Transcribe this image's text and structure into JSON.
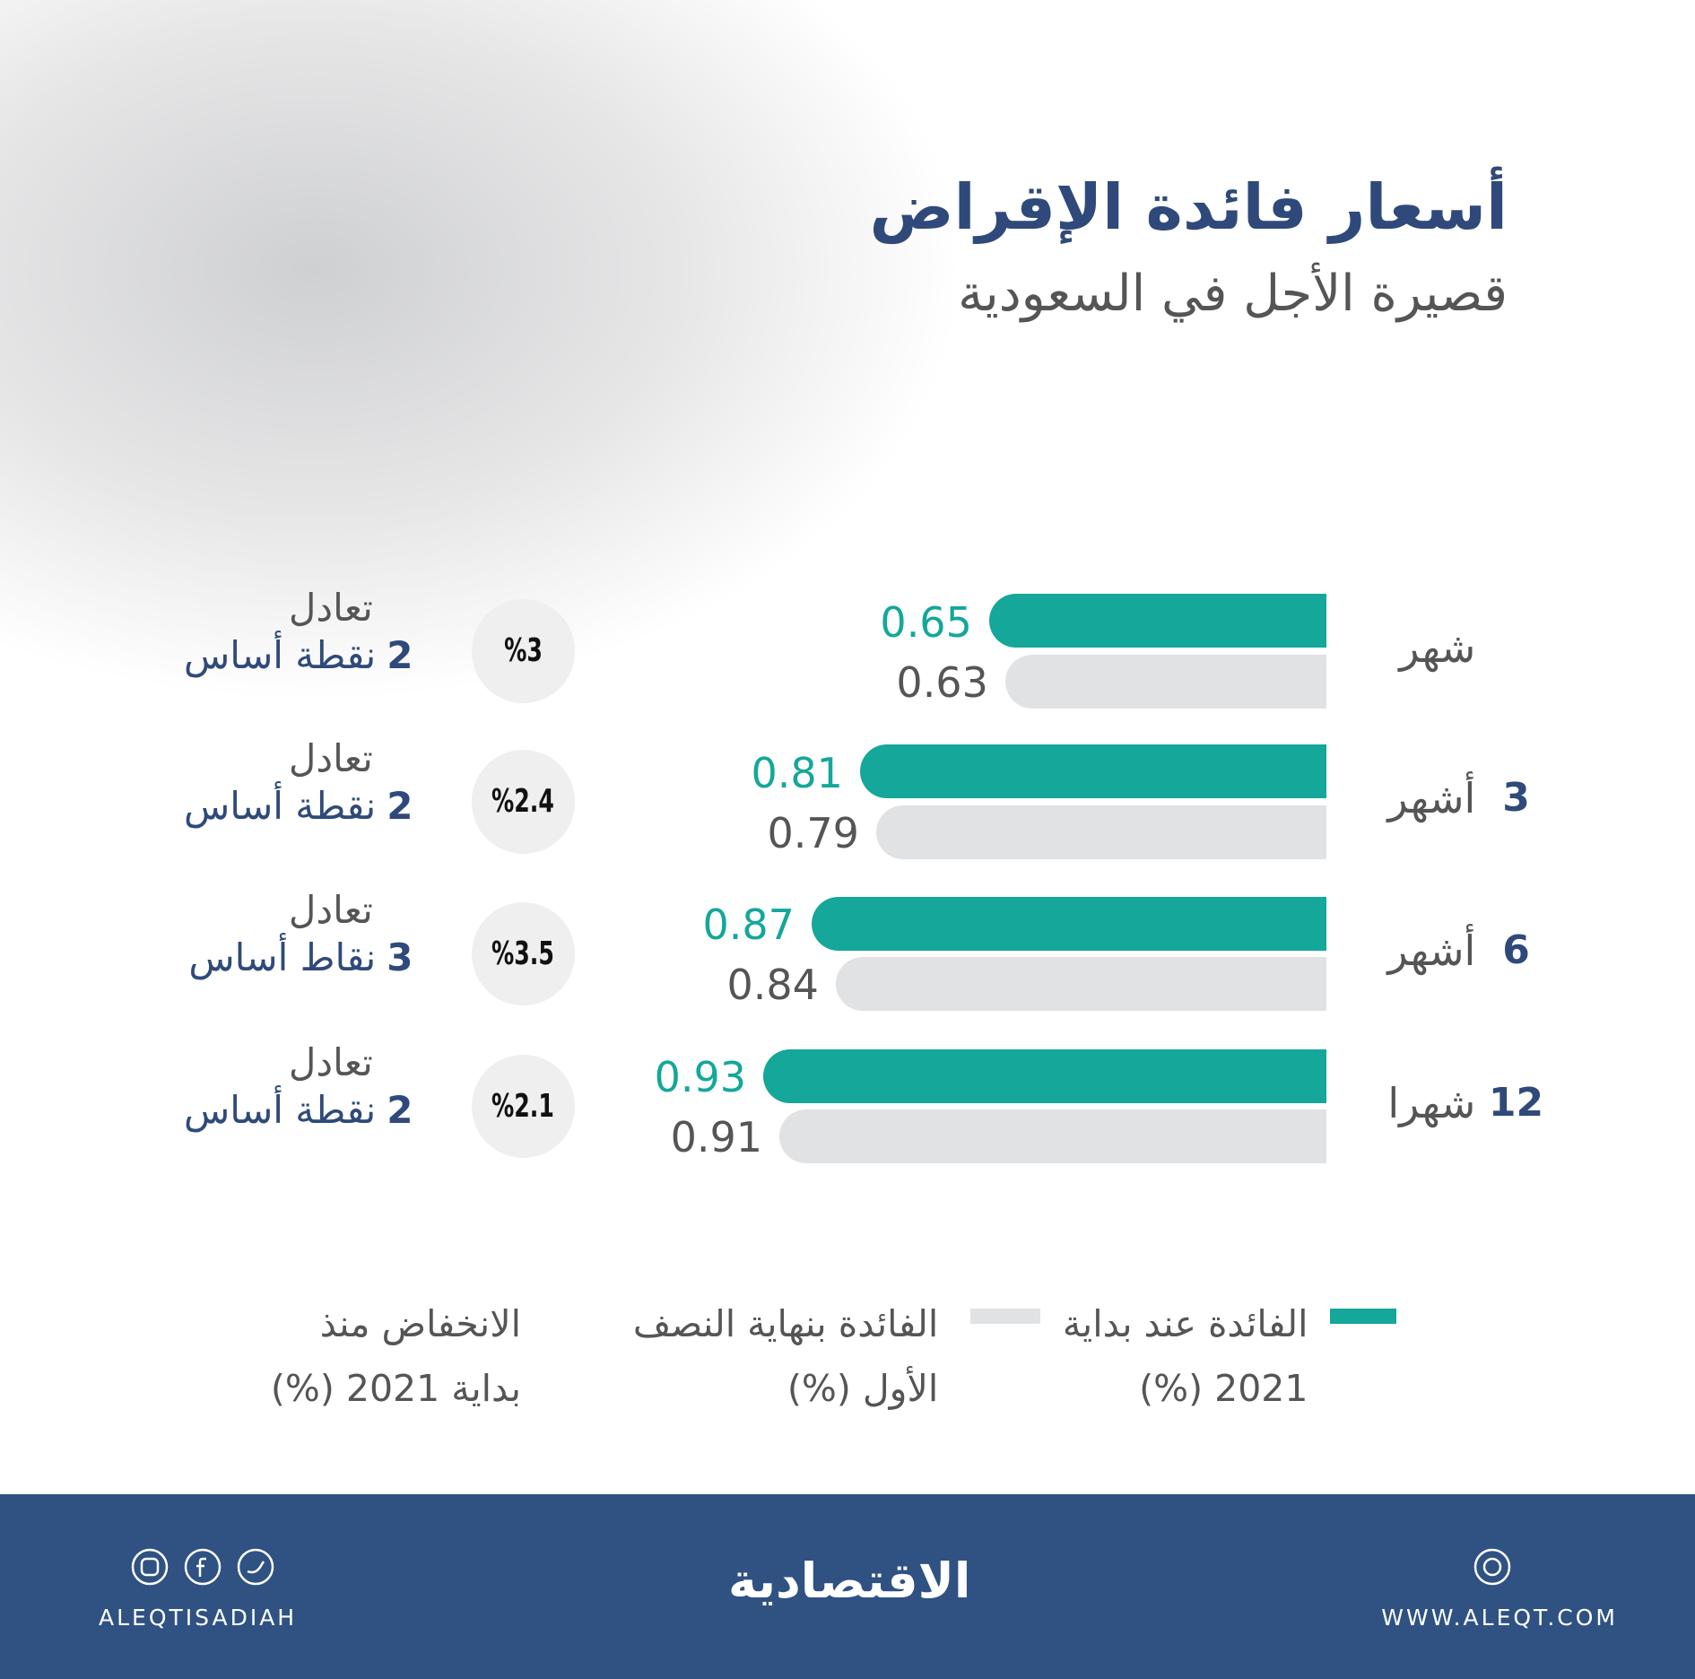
{
  "chart_data": {
    "type": "bar",
    "title": "أسعار فائدة الإقراض",
    "subtitle": "قصيرة الأجل في السعودية",
    "categories": [
      {
        "unit": "شهر"
      },
      {
        "count": 3,
        "unit": "أشهر"
      },
      {
        "count": 6,
        "unit": "أشهر"
      },
      {
        "count": 12,
        "unit": "شهرا"
      }
    ],
    "series": [
      {
        "name": "الفائدة عند بداية 2021 (%)",
        "color": "#14a79a",
        "values": [
          0.65,
          0.81,
          0.87,
          0.93
        ]
      },
      {
        "name": "الفائدة بنهاية النصف الأول (%)",
        "color": "#e1e2e4",
        "values": [
          0.63,
          0.79,
          0.84,
          0.91
        ]
      }
    ],
    "xlim": [
      0.2,
      1.0
    ],
    "decline_title": "الانخفاض منذ بداية 2021 (%)",
    "decline": {
      "values": [
        3,
        2.4,
        3.5,
        2.1
      ],
      "value_labels": [
        "%3",
        "%2.4",
        "%3.5",
        "%2.1"
      ]
    },
    "notes": [
      {
        "label": "تعادل",
        "points": 2,
        "unit": "نقطة أساس"
      },
      {
        "label": "تعادل",
        "points": 2,
        "unit": "نقطة أساس"
      },
      {
        "label": "تعادل",
        "points": 3,
        "unit": "نقاط أساس"
      },
      {
        "label": "تعادل",
        "points": 2,
        "unit": "نقطة أساس"
      }
    ]
  },
  "footer": {
    "brand": "الاقتصادية",
    "handle": "ALEQTISADIAH",
    "website": "WWW.ALEQT.COM"
  }
}
